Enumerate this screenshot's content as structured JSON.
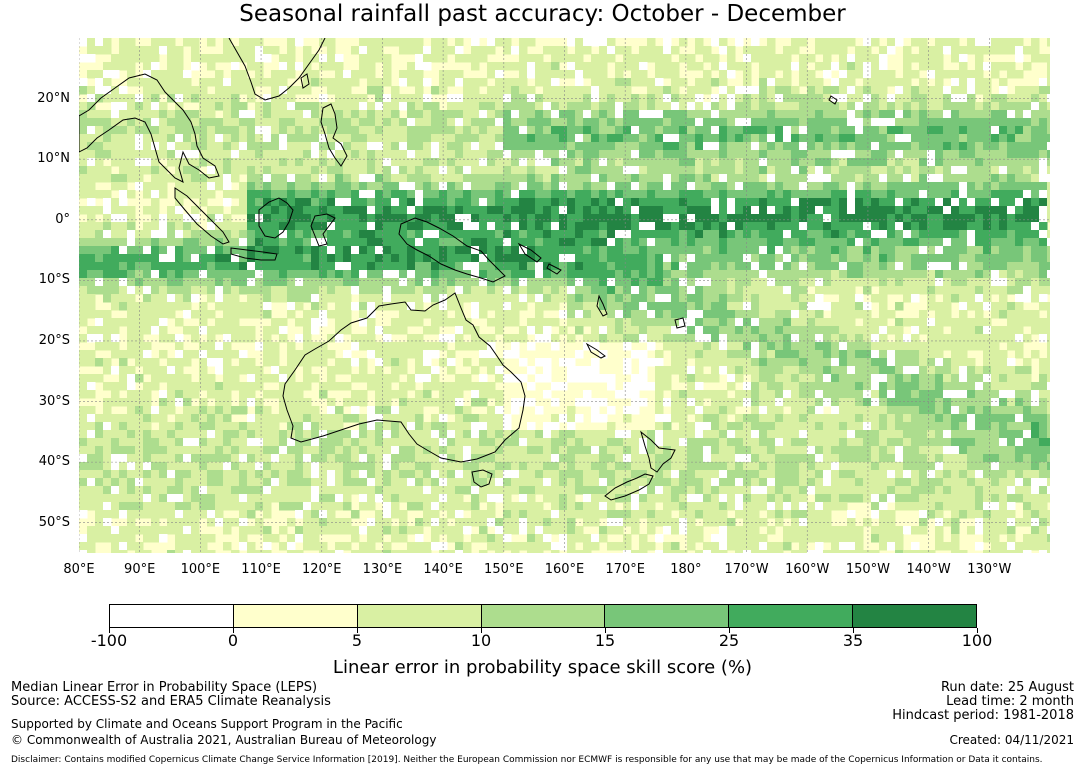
{
  "title": "Seasonal rainfall past accuracy: October - December",
  "map": {
    "projection": "PlateCarree",
    "lon_range": [
      80,
      240
    ],
    "lat_range": [
      -55,
      30
    ],
    "lat_labels": [
      "20°N",
      "10°N",
      "0°",
      "10°S",
      "20°S",
      "30°S",
      "40°S",
      "50°S"
    ],
    "lat_values": [
      20,
      10,
      0,
      -10,
      -20,
      -30,
      -40,
      -50
    ],
    "lon_labels": [
      "80°E",
      "90°E",
      "100°E",
      "110°E",
      "120°E",
      "130°E",
      "140°E",
      "150°E",
      "160°E",
      "170°E",
      "180°",
      "170°W",
      "160°W",
      "150°W",
      "140°W",
      "130°W"
    ],
    "lon_values": [
      80,
      90,
      100,
      110,
      120,
      130,
      140,
      150,
      160,
      170,
      180,
      190,
      200,
      210,
      220,
      230
    ],
    "gridlines": true,
    "field": "Linear error in probability space skill score"
  },
  "colorbar": {
    "bounds": [
      "-100",
      "0",
      "5",
      "10",
      "15",
      "25",
      "35",
      "100"
    ],
    "colors": [
      "#ffffff",
      "#ffffcc",
      "#d9f0a3",
      "#addd8e",
      "#78c679",
      "#41ab5d",
      "#238443"
    ],
    "label": "Linear error in probability space skill score (%)"
  },
  "footer": {
    "line1": "Median Linear Error in Probability Space (LEPS)",
    "line2": "Source: ACCESS-S2 and ERA5 Climate Reanalysis",
    "line3": "Supported by Climate and Oceans Support Program in the Pacific",
    "line4": "© Commonwealth of Australia 2021, Australian Bureau of Meteorology",
    "run_date": "Run date: 25 August",
    "lead_time": "Lead time: 2 month",
    "hindcast": "Hindcast period: 1981-2018",
    "created": "Created: 04/11/2021",
    "disclaimer": "Disclaimer: Contains modified Copernicus Climate Change Service Information [2019]. Neither the European Commission nor ECMWF is responsible for any use that may be made of the Copernicus Information or Data it contains."
  }
}
